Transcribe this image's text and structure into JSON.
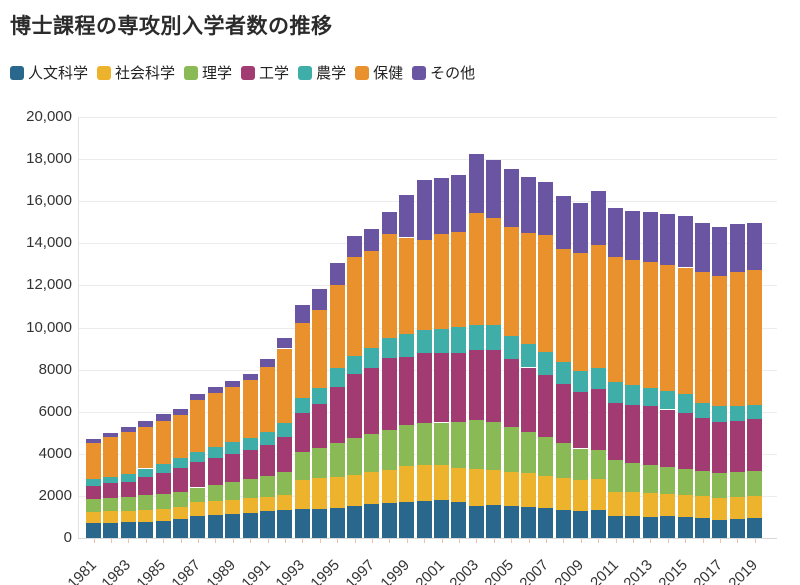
{
  "title": "博士課程の専攻別入学者数の推移",
  "chart_data": {
    "type": "bar",
    "stacked": true,
    "title": "博士課程の専攻別入学者数の推移",
    "xlabel": "",
    "ylabel": "",
    "ylim": [
      0,
      20000
    ],
    "ytick_interval": 2000,
    "ytick_labels": [
      "0",
      "2000",
      "4000",
      "6000",
      "8000",
      "10,000",
      "12,000",
      "14,000",
      "16,000",
      "18,000",
      "20,000"
    ],
    "grid": "horizontal",
    "legend_position": "top",
    "categories": [
      1981,
      1982,
      1983,
      1984,
      1985,
      1986,
      1987,
      1988,
      1989,
      1990,
      1991,
      1992,
      1993,
      1994,
      1995,
      1996,
      1997,
      1998,
      1999,
      2000,
      2001,
      2002,
      2003,
      2004,
      2005,
      2006,
      2007,
      2008,
      2009,
      2010,
      2011,
      2012,
      2013,
      2014,
      2015,
      2016,
      2017,
      2018,
      2019
    ],
    "x_tick_labels": [
      "1981",
      "1983",
      "1985",
      "1987",
      "1989",
      "1991",
      "1993",
      "1995",
      "1997",
      "1999",
      "2001",
      "2003",
      "2005",
      "2007",
      "2009",
      "2011",
      "2013",
      "2015",
      "2017",
      "2019"
    ],
    "series": [
      {
        "name": "人文科学",
        "color": "#29688c",
        "values": [
          700,
          727,
          746,
          774,
          822,
          900,
          1045,
          1093,
          1140,
          1200,
          1297,
          1330,
          1360,
          1380,
          1410,
          1534,
          1600,
          1648,
          1725,
          1758,
          1805,
          1690,
          1534,
          1568,
          1534,
          1488,
          1410,
          1330,
          1283,
          1330,
          1060,
          1045,
          1012,
          1045,
          1012,
          964,
          855,
          903,
          936
        ]
      },
      {
        "name": "社会科学",
        "color": "#eeb32c",
        "values": [
          550,
          556,
          551,
          556,
          543,
          570,
          655,
          667,
          665,
          685,
          636,
          713,
          1390,
          1490,
          1490,
          1459,
          1521,
          1582,
          1695,
          1710,
          1663,
          1620,
          1744,
          1662,
          1616,
          1585,
          1550,
          1505,
          1472,
          1470,
          1140,
          1125,
          1110,
          1030,
          1031,
          1046,
          1060,
          1059,
          1074
        ]
      },
      {
        "name": "理学",
        "color": "#8aba56",
        "values": [
          610,
          632,
          663,
          700,
          725,
          730,
          700,
          770,
          850,
          900,
          1000,
          1100,
          1350,
          1390,
          1600,
          1757,
          1829,
          1920,
          1950,
          1980,
          2020,
          2220,
          2330,
          2295,
          2150,
          1977,
          1840,
          1665,
          1495,
          1380,
          1500,
          1380,
          1328,
          1305,
          1257,
          1190,
          1165,
          1188,
          1170
        ]
      },
      {
        "name": "工学",
        "color": "#a23b72",
        "values": [
          610,
          685,
          720,
          870,
          1010,
          1130,
          1200,
          1270,
          1340,
          1400,
          1500,
          1650,
          1820,
          2090,
          2690,
          3040,
          3111,
          3386,
          3230,
          3325,
          3310,
          3280,
          3320,
          3405,
          3205,
          3050,
          2943,
          2800,
          2700,
          2920,
          2700,
          2750,
          2800,
          2720,
          2650,
          2500,
          2420,
          2410,
          2470
        ]
      },
      {
        "name": "農学",
        "color": "#3fada8",
        "values": [
          320,
          312,
          346,
          400,
          425,
          470,
          500,
          530,
          550,
          570,
          600,
          650,
          710,
          790,
          870,
          870,
          950,
          980,
          1080,
          1107,
          1150,
          1200,
          1190,
          1188,
          1095,
          1100,
          1105,
          1050,
          1000,
          1000,
          1000,
          950,
          890,
          900,
          900,
          700,
          750,
          710,
          650
        ]
      },
      {
        "name": "保健",
        "color": "#e8912d",
        "values": [
          1710,
          1888,
          2024,
          1990,
          2050,
          2040,
          2455,
          2570,
          2635,
          2745,
          3117,
          3557,
          3570,
          3710,
          3960,
          4702,
          4627,
          4916,
          4596,
          4275,
          4522,
          4520,
          5332,
          5082,
          5200,
          5300,
          5540,
          5363,
          5573,
          5818,
          5963,
          5955,
          5960,
          5980,
          6000,
          6250,
          6195,
          6350,
          6430
        ]
      },
      {
        "name": "その他",
        "color": "#6a55a3",
        "values": [
          204,
          207,
          240,
          268,
          302,
          273,
          271,
          288,
          298,
          313,
          355,
          481,
          851,
          1002,
          1054,
          983,
          1045,
          1059,
          2000,
          2868,
          2658,
          2704,
          2782,
          2744,
          2753,
          2631,
          2538,
          2558,
          2378,
          2553,
          2322,
          2352,
          2391,
          2438,
          2433,
          2322,
          2321,
          2283,
          2246
        ]
      }
    ],
    "totals_note": {
      "peak_year": 2003,
      "peak_value": 18232,
      "last_year": 2019,
      "last_value": 14976
    }
  }
}
